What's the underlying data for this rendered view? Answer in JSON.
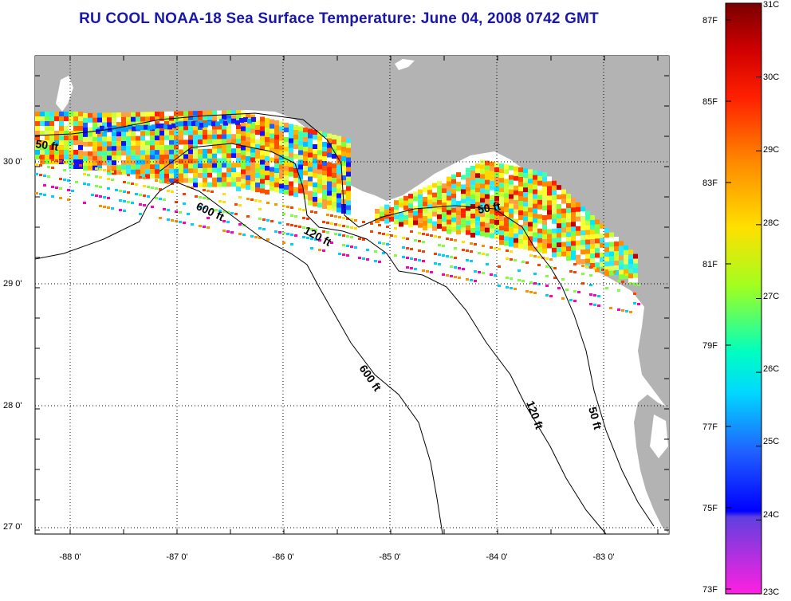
{
  "title": "RU COOL  NOAA-18  Sea Surface Temperature:  June 04, 2008 0742 GMT",
  "map": {
    "lat_labels": [
      "30 0'",
      "29 0'",
      "28 0'",
      "27 0'"
    ],
    "lon_labels": [
      "-88 0'",
      "-87 0'",
      "-86 0'",
      "-85 0'",
      "-84 0'",
      "-83 0'"
    ],
    "contour_labels": [
      "50 ft",
      "600 ft",
      "120 ft",
      "50 ft",
      "600 ft",
      "120 ft",
      "50 ft"
    ],
    "land_color": "#b3b3b3",
    "water_color": "#ffffff"
  },
  "colorbar": {
    "fahrenheit_labels": [
      "87F",
      "85F",
      "83F",
      "81F",
      "79F",
      "77F",
      "75F",
      "73F"
    ],
    "celsius_labels": [
      "31C",
      "30C",
      "29C",
      "28C",
      "27C",
      "26C",
      "25C",
      "24C",
      "23C"
    ],
    "colors": [
      "#8b0000",
      "#ff0000",
      "#ff8c00",
      "#ffff00",
      "#7fff00",
      "#00ffff",
      "#0000ff",
      "#ff00ff"
    ]
  }
}
